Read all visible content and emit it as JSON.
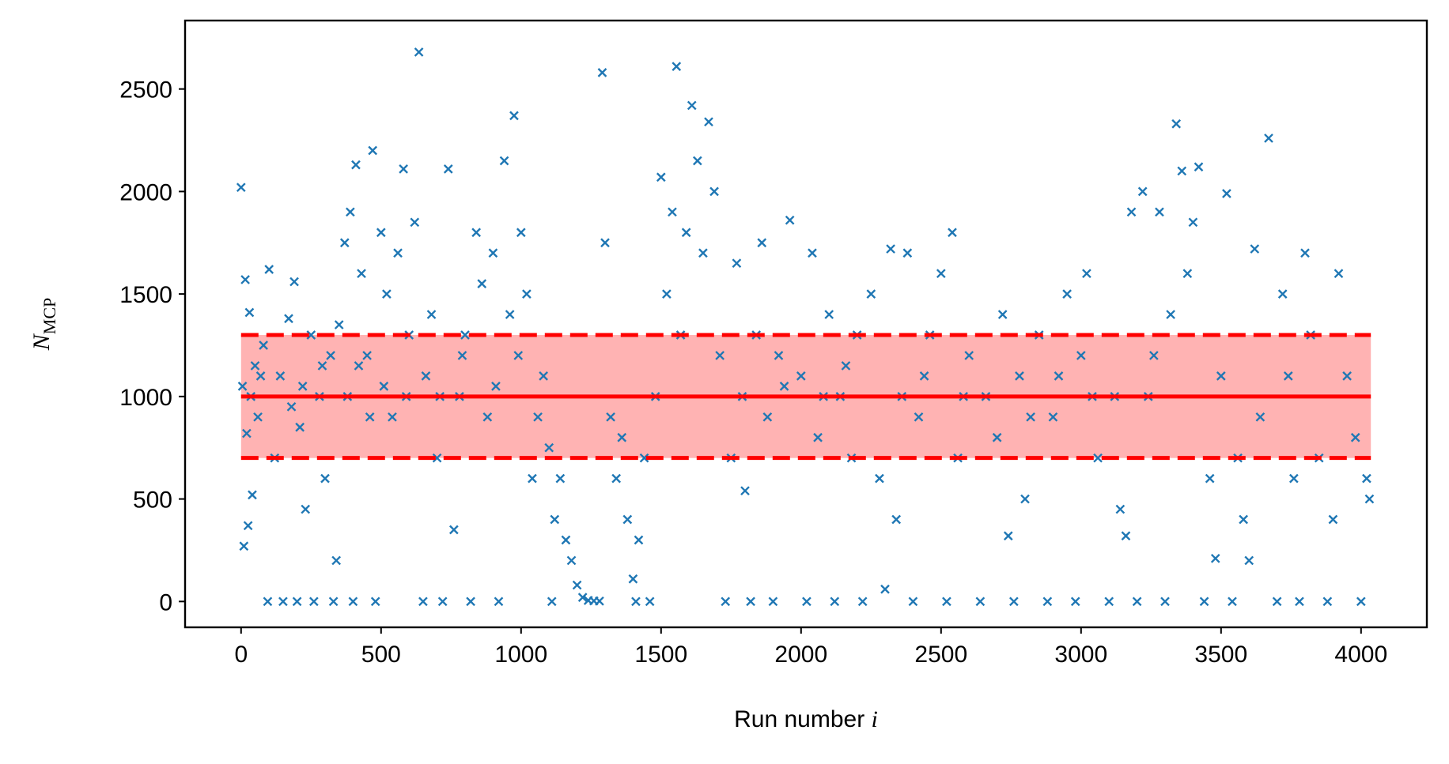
{
  "chart_data": {
    "type": "scatter",
    "xlabel": {
      "text": "Run number",
      "var": "i"
    },
    "ylabel": {
      "main": "N",
      "sub": "MCP"
    },
    "x": [
      0,
      5,
      10,
      15,
      20,
      25,
      30,
      35,
      40,
      50,
      60,
      70,
      80,
      95,
      100,
      120,
      140,
      150,
      170,
      180,
      190,
      200,
      210,
      220,
      230,
      250,
      260,
      280,
      290,
      300,
      320,
      330,
      340,
      350,
      370,
      380,
      390,
      400,
      410,
      420,
      430,
      450,
      460,
      470,
      480,
      500,
      510,
      520,
      540,
      560,
      580,
      590,
      600,
      620,
      635,
      650,
      660,
      680,
      700,
      710,
      720,
      740,
      760,
      780,
      790,
      800,
      820,
      840,
      860,
      880,
      900,
      910,
      920,
      940,
      960,
      975,
      990,
      1000,
      1020,
      1040,
      1060,
      1080,
      1100,
      1110,
      1120,
      1140,
      1160,
      1180,
      1200,
      1220,
      1240,
      1260,
      1280,
      1290,
      1300,
      1320,
      1340,
      1360,
      1380,
      1400,
      1410,
      1420,
      1440,
      1460,
      1480,
      1500,
      1520,
      1540,
      1555,
      1570,
      1590,
      1610,
      1630,
      1650,
      1670,
      1690,
      1710,
      1730,
      1750,
      1770,
      1790,
      1800,
      1820,
      1840,
      1860,
      1880,
      1900,
      1920,
      1940,
      1960,
      2000,
      2020,
      2040,
      2060,
      2080,
      2100,
      2120,
      2140,
      2160,
      2180,
      2200,
      2220,
      2250,
      2280,
      2300,
      2320,
      2340,
      2360,
      2380,
      2400,
      2420,
      2440,
      2460,
      2500,
      2520,
      2540,
      2560,
      2580,
      2600,
      2640,
      2660,
      2700,
      2720,
      2740,
      2760,
      2780,
      2800,
      2820,
      2850,
      2880,
      2900,
      2920,
      2950,
      2980,
      3000,
      3020,
      3040,
      3060,
      3100,
      3120,
      3140,
      3160,
      3180,
      3200,
      3220,
      3240,
      3260,
      3280,
      3300,
      3320,
      3340,
      3360,
      3380,
      3400,
      3420,
      3440,
      3460,
      3480,
      3500,
      3520,
      3540,
      3560,
      3580,
      3600,
      3620,
      3640,
      3670,
      3700,
      3720,
      3740,
      3760,
      3780,
      3800,
      3820,
      3850,
      3880,
      3900,
      3920,
      3950,
      3980,
      4000,
      4020,
      4030
    ],
    "values": [
      2020,
      1050,
      270,
      1570,
      820,
      370,
      1410,
      1000,
      520,
      1150,
      900,
      1100,
      1250,
      0,
      1620,
      700,
      1100,
      0,
      1380,
      950,
      1560,
      0,
      850,
      1050,
      450,
      1300,
      0,
      1000,
      1150,
      600,
      1200,
      0,
      200,
      1350,
      1750,
      1000,
      1900,
      0,
      2130,
      1150,
      1600,
      1200,
      900,
      2200,
      0,
      1800,
      1050,
      1500,
      900,
      1700,
      2110,
      1000,
      1300,
      1850,
      2680,
      0,
      1100,
      1400,
      700,
      1000,
      0,
      2110,
      350,
      1000,
      1200,
      1300,
      0,
      1800,
      1550,
      900,
      1700,
      1050,
      0,
      2150,
      1400,
      2370,
      1200,
      1800,
      1500,
      600,
      900,
      1100,
      750,
      0,
      400,
      600,
      300,
      200,
      80,
      20,
      5,
      3,
      2,
      2580,
      1750,
      900,
      600,
      800,
      400,
      110,
      0,
      300,
      700,
      0,
      1000,
      2070,
      1500,
      1900,
      2610,
      1300,
      1800,
      2420,
      2150,
      1700,
      2340,
      2000,
      1200,
      0,
      700,
      1650,
      1000,
      540,
      0,
      1300,
      1750,
      900,
      0,
      1200,
      1050,
      1860,
      1100,
      0,
      1700,
      800,
      1000,
      1400,
      0,
      1000,
      1150,
      700,
      1300,
      0,
      1500,
      600,
      60,
      1720,
      400,
      1000,
      1700,
      0,
      900,
      1100,
      1300,
      1600,
      0,
      1800,
      700,
      1000,
      1200,
      0,
      1000,
      800,
      1400,
      320,
      0,
      1100,
      500,
      900,
      1300,
      0,
      900,
      1100,
      1500,
      0,
      1200,
      1600,
      1000,
      700,
      0,
      1000,
      450,
      320,
      1900,
      0,
      2000,
      1000,
      1200,
      1900,
      0,
      1400,
      2330,
      2100,
      1600,
      1850,
      2120,
      0,
      600,
      210,
      1100,
      1990,
      0,
      700,
      400,
      200,
      1720,
      900,
      2260,
      0,
      1500,
      1100,
      600,
      0,
      1700,
      1300,
      700,
      0,
      400,
      1600,
      1100,
      800,
      0,
      600,
      500
    ],
    "color": "#1f77b4",
    "mean": 1000,
    "band": [
      700,
      1300
    ],
    "line_xrange": [
      0,
      4035
    ],
    "line_color": "#ff0000",
    "band_color": "#ffb3b3",
    "xlim": [
      -200,
      4235
    ],
    "ylim": [
      -126,
      2834
    ],
    "xticks": [
      0,
      500,
      1000,
      1500,
      2000,
      2500,
      3000,
      3500,
      4000
    ],
    "yticks": [
      0,
      500,
      1000,
      1500,
      2000,
      2500
    ],
    "grid": false
  }
}
